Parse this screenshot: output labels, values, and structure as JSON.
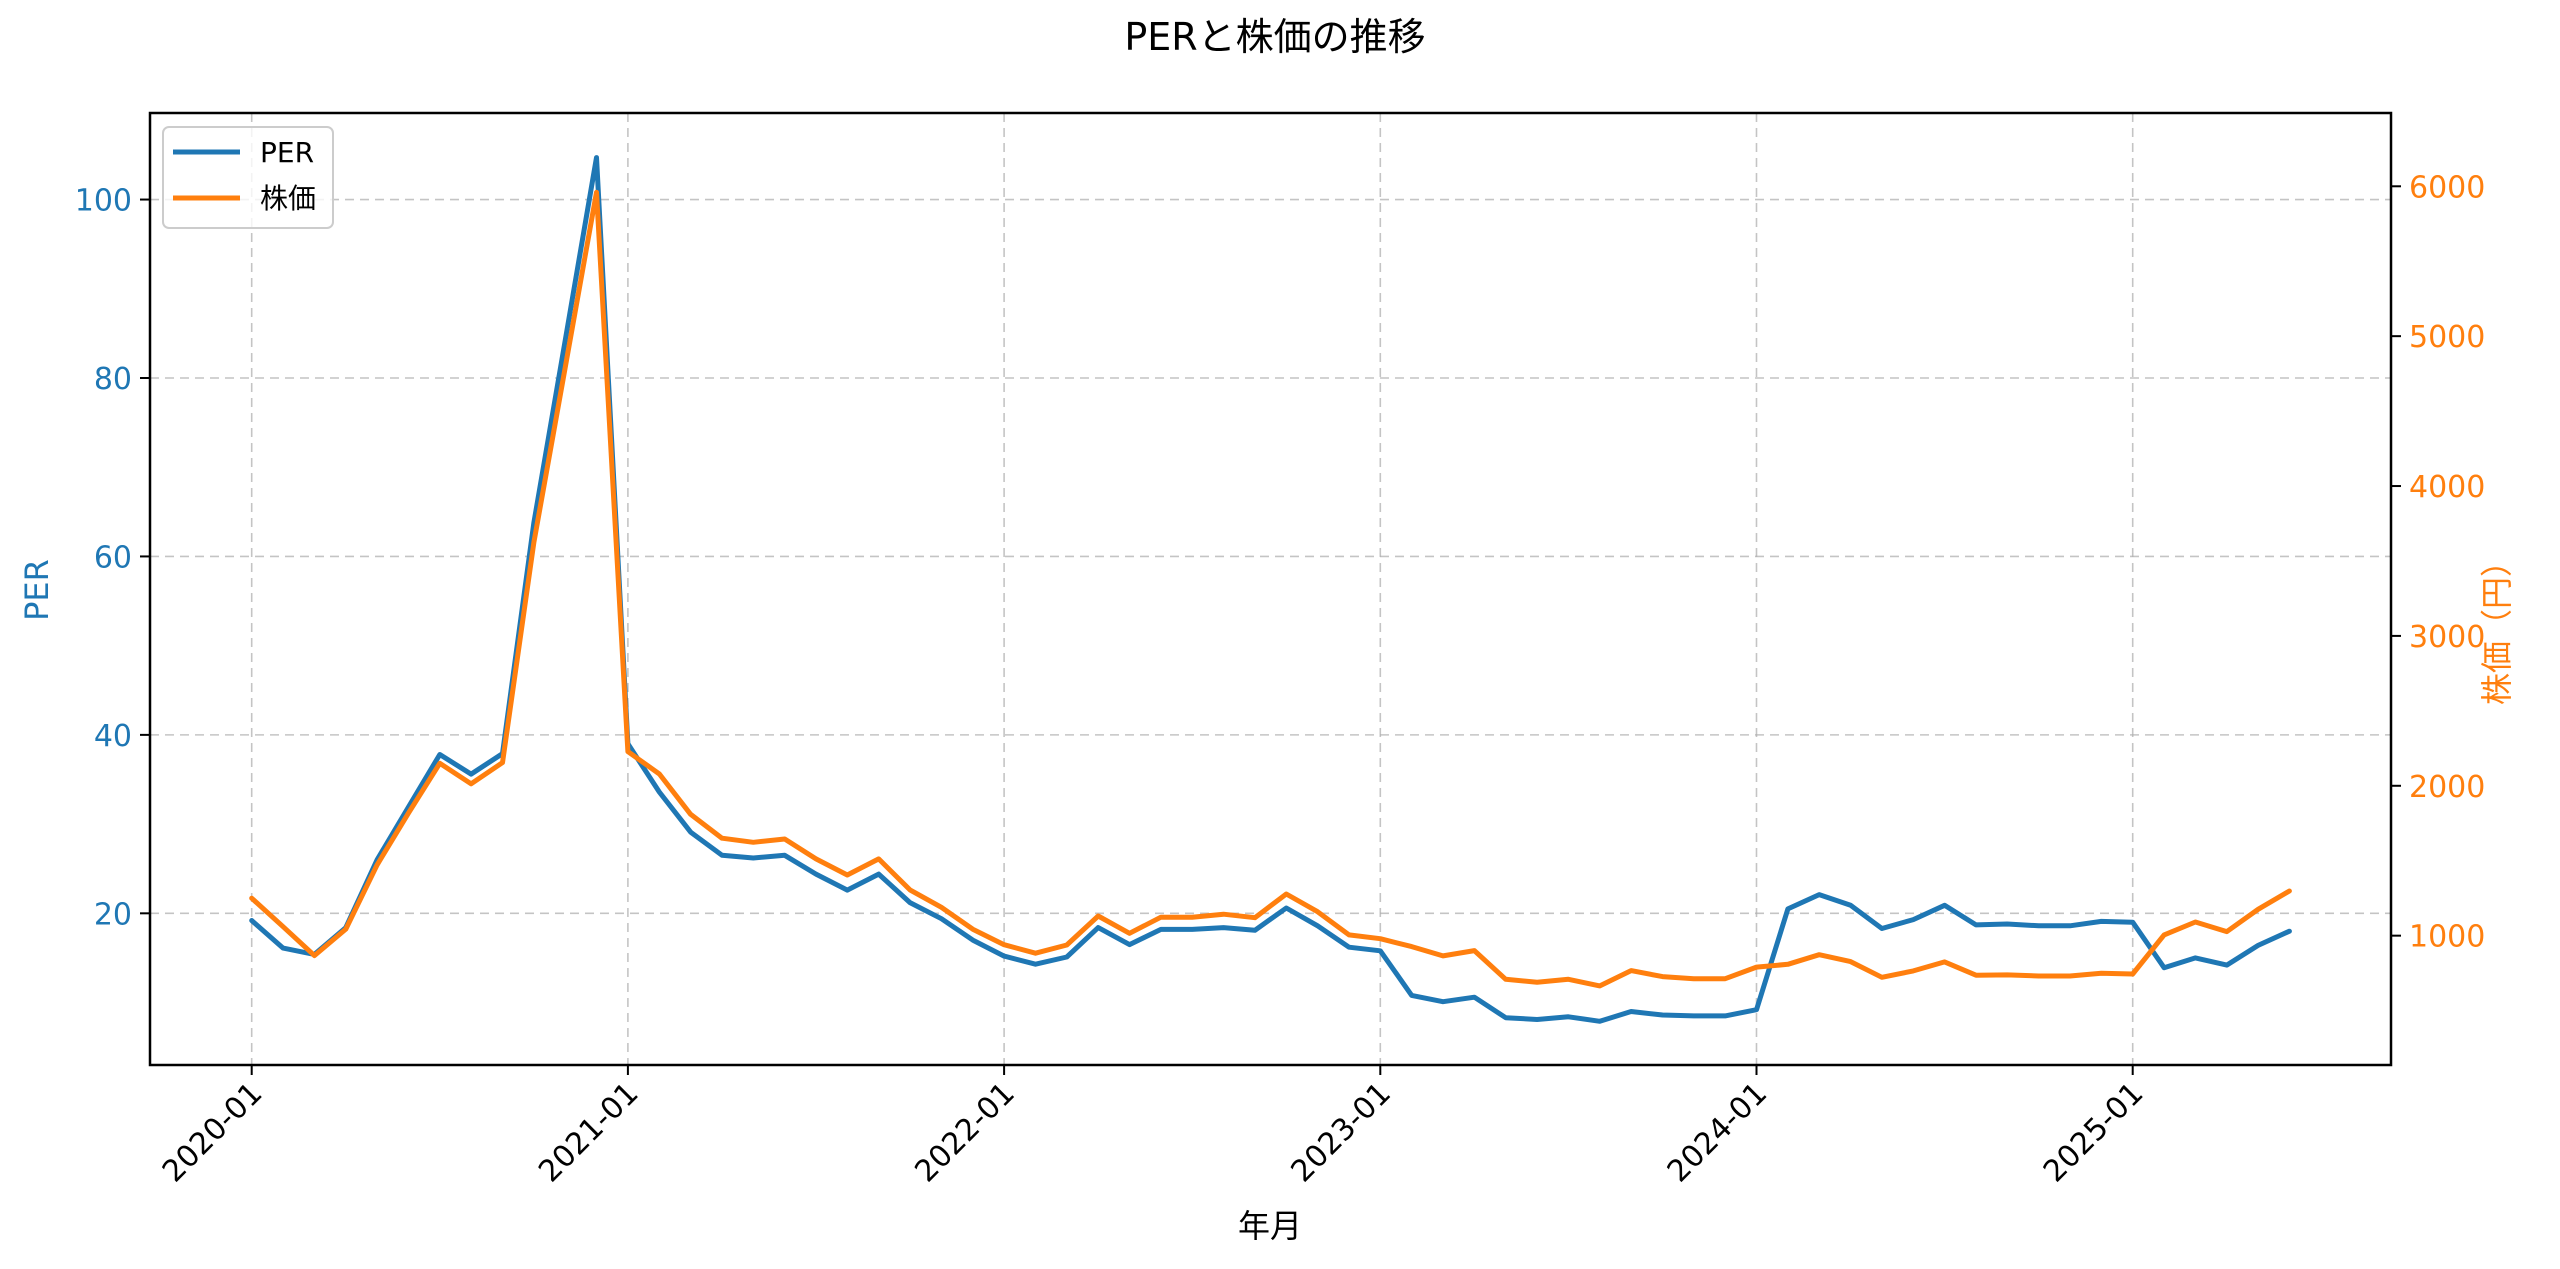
{
  "chart_data": {
    "type": "line",
    "title": "PERと株価の推移",
    "xlabel": "年月",
    "ylabel": "PER",
    "ylabel_right": "株価（円）",
    "x_tick_labels": [
      "2020-01",
      "2021-01",
      "2022-01",
      "2023-01",
      "2024-01",
      "2025-01"
    ],
    "y_ticks_left": [
      20,
      40,
      60,
      80,
      100
    ],
    "y_ticks_right": [
      1000,
      2000,
      3000,
      4000,
      5000,
      6000
    ],
    "ylim_left": [
      3.0,
      109.7
    ],
    "ylim_right": [
      137,
      6489
    ],
    "grid": true,
    "legend_position": "upper left",
    "x": [
      "2020-01",
      "2020-02",
      "2020-03",
      "2020-04",
      "2020-05",
      "2020-06",
      "2020-07",
      "2020-08",
      "2020-09",
      "2020-10",
      "2020-11",
      "2020-12",
      "2021-01",
      "2021-02",
      "2021-03",
      "2021-04",
      "2021-05",
      "2021-06",
      "2021-07",
      "2021-08",
      "2021-09",
      "2021-10",
      "2021-11",
      "2021-12",
      "2022-01",
      "2022-02",
      "2022-03",
      "2022-04",
      "2022-05",
      "2022-06",
      "2022-07",
      "2022-08",
      "2022-09",
      "2022-10",
      "2022-11",
      "2022-12",
      "2023-01",
      "2023-02",
      "2023-03",
      "2023-04",
      "2023-05",
      "2023-06",
      "2023-07",
      "2023-08",
      "2023-09",
      "2023-10",
      "2023-11",
      "2023-12",
      "2024-01",
      "2024-02",
      "2024-03",
      "2024-04",
      "2024-05",
      "2024-06",
      "2024-07",
      "2024-08",
      "2024-09",
      "2024-10",
      "2024-11",
      "2024-12",
      "2025-01",
      "2025-02",
      "2025-03",
      "2025-04",
      "2025-05",
      "2025-06"
    ],
    "series": [
      {
        "name": "PER",
        "axis": "left",
        "color": "#1f77b4",
        "values": [
          19.2,
          16.1,
          15.4,
          18.4,
          26.0,
          31.9,
          37.8,
          35.6,
          37.9,
          63.8,
          84.2,
          104.7,
          39.0,
          33.6,
          29.1,
          26.5,
          26.2,
          26.5,
          24.4,
          22.6,
          24.4,
          21.2,
          19.4,
          17.0,
          15.2,
          14.3,
          15.1,
          18.4,
          16.5,
          18.2,
          18.2,
          18.4,
          18.1,
          20.6,
          18.6,
          16.2,
          15.8,
          10.8,
          10.1,
          10.6,
          8.3,
          8.1,
          8.4,
          7.9,
          9.0,
          8.6,
          8.5,
          8.5,
          9.2,
          20.5,
          22.1,
          20.9,
          18.3,
          19.3,
          20.9,
          18.7,
          18.8,
          18.6,
          18.6,
          19.1,
          19.0,
          13.9,
          15.0,
          14.2,
          16.4,
          18.0
        ]
      },
      {
        "name": "株価",
        "axis": "right",
        "color": "#ff7f0e",
        "values": [
          1250,
          1060,
          867,
          1044,
          1472,
          1817,
          2150,
          2013,
          2155,
          3625,
          4790,
          5960,
          2228,
          2079,
          1810,
          1650,
          1623,
          1645,
          1512,
          1405,
          1512,
          1305,
          1189,
          1043,
          940,
          883,
          938,
          1131,
          1016,
          1123,
          1123,
          1143,
          1120,
          1278,
          1160,
          1005,
          980,
          927,
          865,
          900,
          709,
          689,
          709,
          665,
          767,
          727,
          713,
          713,
          790,
          809,
          873,
          827,
          722,
          765,
          825,
          736,
          738,
          731,
          731,
          749,
          744,
          1005,
          1091,
          1027,
          1176,
          1298
        ]
      }
    ]
  },
  "legend": {
    "items": [
      {
        "label": "PER",
        "color": "#1f77b4"
      },
      {
        "label": "株価",
        "color": "#ff7f0e"
      }
    ]
  },
  "colors": {
    "per": "#1f77b4",
    "price": "#ff7f0e",
    "grid": "#b0b0b0",
    "axis": "#000000"
  }
}
